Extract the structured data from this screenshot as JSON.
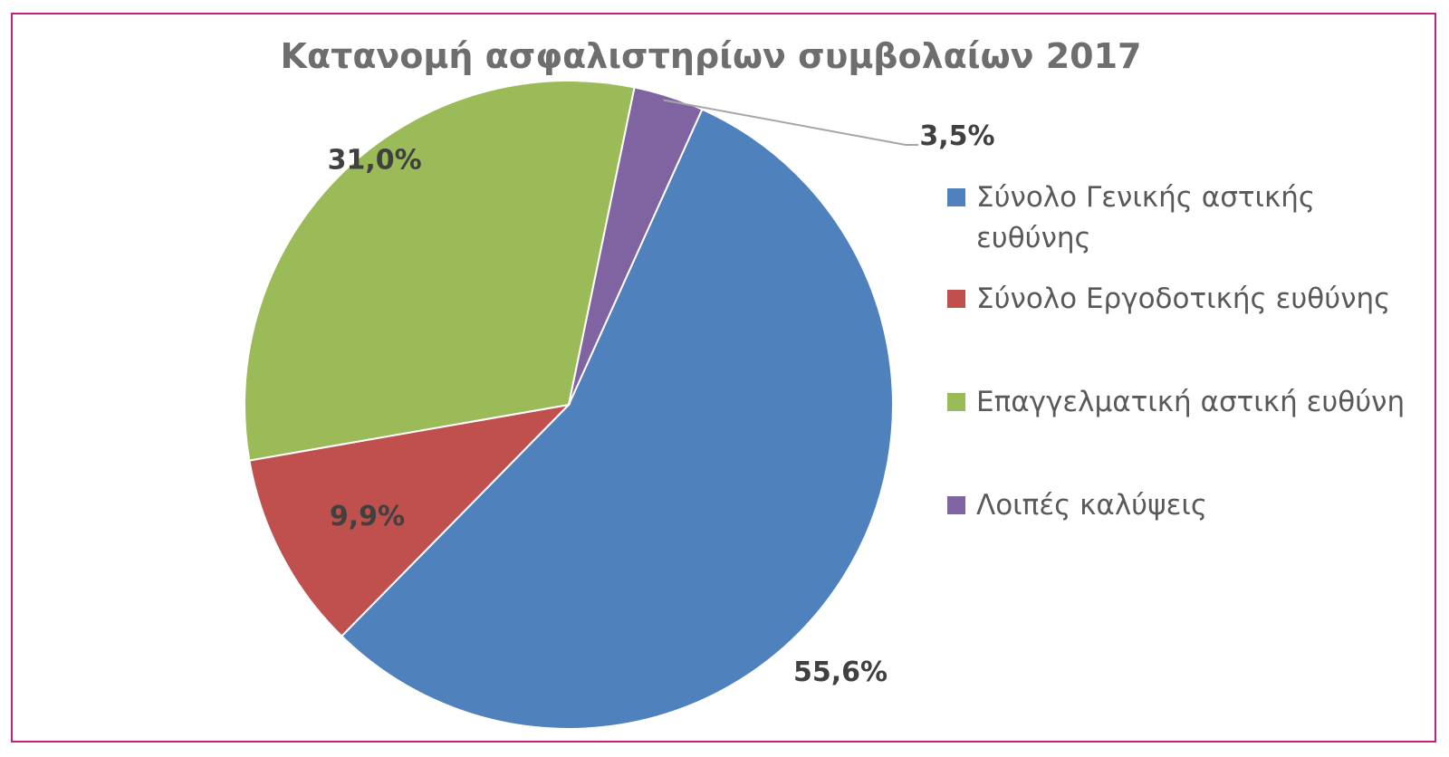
{
  "chart_data": {
    "type": "pie",
    "title": "Κατανομή ασφαλιστηρίων συμβολαίων 2017",
    "slices": [
      {
        "label": "Σύνολο Γενικής αστικής ευθύνης",
        "value": 55.6,
        "display": "55,6%",
        "color": "#4f81bd"
      },
      {
        "label": "Σύνολο Εργοδοτικής ευθύνης",
        "value": 9.9,
        "display": "9,9%",
        "color": "#c0504d"
      },
      {
        "label": "Επαγγελματική αστική ευθύνη",
        "value": 31.0,
        "display": "31,0%",
        "color": "#9bbb59"
      },
      {
        "label": "Λοιπές καλύψεις",
        "value": 3.5,
        "display": "3,5%",
        "color": "#8064a2"
      }
    ],
    "legend_position": "right"
  }
}
